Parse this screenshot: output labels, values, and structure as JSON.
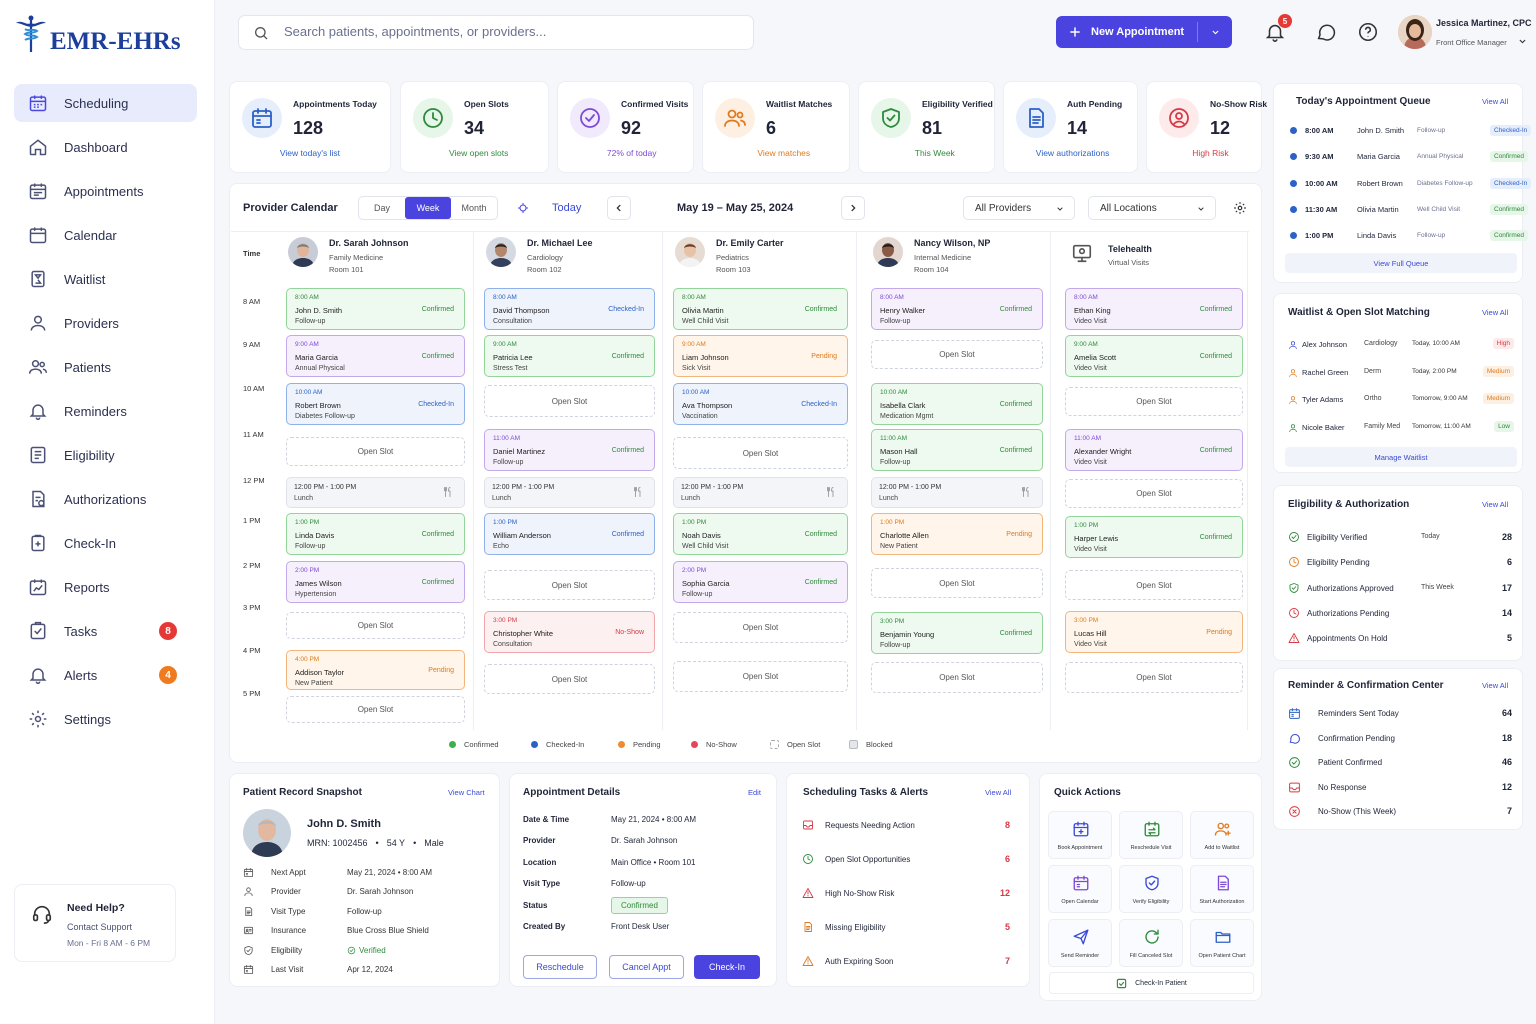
{
  "brand": {
    "name": "EMR-EHRs"
  },
  "sidebar": {
    "items": [
      {
        "label": "Scheduling"
      },
      {
        "label": "Dashboard"
      },
      {
        "label": "Appointments"
      },
      {
        "label": "Calendar"
      },
      {
        "label": "Waitlist"
      },
      {
        "label": "Providers"
      },
      {
        "label": "Patients"
      },
      {
        "label": "Reminders"
      },
      {
        "label": "Eligibility"
      },
      {
        "label": "Authorizations"
      },
      {
        "label": "Check-In"
      },
      {
        "label": "Reports"
      },
      {
        "label": "Tasks",
        "badge": "8"
      },
      {
        "label": "Alerts",
        "badge": "4"
      },
      {
        "label": "Settings"
      }
    ],
    "help": {
      "title": "Need Help?",
      "line1": "Contact Support",
      "line2": "Mon - Fri 8 AM - 6 PM"
    }
  },
  "topbar": {
    "search_placeholder": "Search patients, appointments, or providers...",
    "new_appointment": "New Appointment",
    "notif_count": "5",
    "user_name": "Jessica Martinez, CPC",
    "user_role": "Front Office Manager"
  },
  "stats": [
    {
      "label": "Appointments Today",
      "value": "128",
      "link": "View today's list",
      "color": "#2c61c7"
    },
    {
      "label": "Open Slots",
      "value": "34",
      "link": "View open slots",
      "color": "#2f8a3c"
    },
    {
      "label": "Confirmed Visits",
      "value": "92",
      "link": "72% of today",
      "color": "#7d4ad6"
    },
    {
      "label": "Waitlist Matches",
      "value": "6",
      "link": "View matches",
      "color": "#e07a1f"
    },
    {
      "label": "Eligibility Verified",
      "value": "81",
      "link": "This Week",
      "color": "#2f8a3c"
    },
    {
      "label": "Auth Pending",
      "value": "14",
      "link": "View authorizations",
      "color": "#2c61c7"
    },
    {
      "label": "No-Show Risk",
      "value": "12",
      "link": "High Risk",
      "color": "#d63a44"
    }
  ],
  "calendar": {
    "title": "Provider Calendar",
    "views": [
      "Day",
      "Week",
      "Month"
    ],
    "active_view": "Week",
    "today": "Today",
    "range": "May 19 – May 25, 2024",
    "provider_filter": "All Providers",
    "location_filter": "All Locations",
    "time_header": "Time",
    "time_labels": [
      "8 AM",
      "9 AM",
      "10 AM",
      "11 AM",
      "12 PM",
      "1 PM",
      "2 PM",
      "3 PM",
      "4 PM",
      "5 PM"
    ],
    "providers": [
      {
        "name": "Dr. Sarah Johnson",
        "specialty": "Family Medicine",
        "room": "Room 101"
      },
      {
        "name": "Dr. Michael Lee",
        "specialty": "Cardiology",
        "room": "Room 102"
      },
      {
        "name": "Dr. Emily Carter",
        "specialty": "Pediatrics",
        "room": "Room 103"
      },
      {
        "name": "Nancy Wilson, NP",
        "specialty": "Internal Medicine",
        "room": "Room 104"
      },
      {
        "name": "Telehealth",
        "specialty": "Virtual Visits",
        "room": ""
      }
    ],
    "open_slot_label": "Open Slot",
    "legend": [
      "Confirmed",
      "Checked-In",
      "Pending",
      "No-Show",
      "Open Slot",
      "Blocked"
    ],
    "columns": [
      [
        {
          "kind": "appt",
          "style": "conf",
          "time": "8:00 AM",
          "name": "John D. Smith",
          "desc": "Follow-up",
          "status": "Confirmed"
        },
        {
          "kind": "appt",
          "style": "purp",
          "time": "9:00 AM",
          "name": "Maria Garcia",
          "desc": "Annual Physical",
          "status": "Confirmed"
        },
        {
          "kind": "appt",
          "style": "chk",
          "time": "10:00 AM",
          "name": "Robert Brown",
          "desc": "Diabetes Follow-up",
          "status": "Checked-In"
        },
        {
          "kind": "open"
        },
        {
          "kind": "lunch",
          "time": "12:00 PM - 1:00 PM",
          "name": "Lunch"
        },
        {
          "kind": "appt",
          "style": "conf",
          "time": "1:00 PM",
          "name": "Linda Davis",
          "desc": "Follow-up",
          "status": "Confirmed"
        },
        {
          "kind": "appt",
          "style": "purp",
          "time": "2:00 PM",
          "name": "James Wilson",
          "desc": "Hypertension",
          "status": "Confirmed"
        },
        {
          "kind": "open"
        },
        {
          "kind": "appt",
          "style": "pend",
          "time": "4:00 PM",
          "name": "Addison Taylor",
          "desc": "New Patient",
          "status": "Pending"
        },
        {
          "kind": "open"
        }
      ],
      [
        {
          "kind": "appt",
          "style": "chk",
          "time": "8:00 AM",
          "name": "David Thompson",
          "desc": "Consultation",
          "status": "Checked-In"
        },
        {
          "kind": "appt",
          "style": "conf",
          "time": "9:00 AM",
          "name": "Patricia Lee",
          "desc": "Stress Test",
          "status": "Confirmed"
        },
        {
          "kind": "open"
        },
        {
          "kind": "appt",
          "style": "purp",
          "time": "11:00 AM",
          "name": "Daniel Martinez",
          "desc": "Follow-up",
          "status": "Confirmed"
        },
        {
          "kind": "lunch",
          "time": "12:00 PM - 1:00 PM",
          "name": "Lunch"
        },
        {
          "kind": "appt",
          "style": "chk",
          "time": "1:00 PM",
          "name": "William Anderson",
          "desc": "Echo",
          "status": "Confirmed"
        },
        {
          "kind": "open"
        },
        {
          "kind": "appt",
          "style": "nos",
          "time": "3:00 PM",
          "name": "Christopher White",
          "desc": "Consultation",
          "status": "No-Show"
        },
        {
          "kind": "open"
        }
      ],
      [
        {
          "kind": "appt",
          "style": "conf",
          "time": "8:00 AM",
          "name": "Olivia Martin",
          "desc": "Well Child Visit",
          "status": "Confirmed"
        },
        {
          "kind": "appt",
          "style": "pend",
          "time": "9:00 AM",
          "name": "Liam Johnson",
          "desc": "Sick Visit",
          "status": "Pending"
        },
        {
          "kind": "appt",
          "style": "chk",
          "time": "10:00 AM",
          "name": "Ava Thompson",
          "desc": "Vaccination",
          "status": "Checked-In"
        },
        {
          "kind": "open"
        },
        {
          "kind": "lunch",
          "time": "12:00 PM - 1:00 PM",
          "name": "Lunch"
        },
        {
          "kind": "appt",
          "style": "conf",
          "time": "1:00 PM",
          "name": "Noah Davis",
          "desc": "Well Child Visit",
          "status": "Confirmed"
        },
        {
          "kind": "appt",
          "style": "purp",
          "time": "2:00 PM",
          "name": "Sophia Garcia",
          "desc": "Follow-up",
          "status": "Confirmed"
        },
        {
          "kind": "open"
        },
        {
          "kind": "open"
        }
      ],
      [
        {
          "kind": "appt",
          "style": "purp",
          "time": "8:00 AM",
          "name": "Henry Walker",
          "desc": "Follow-up",
          "status": "Confirmed"
        },
        {
          "kind": "open"
        },
        {
          "kind": "appt",
          "style": "conf",
          "time": "10:00 AM",
          "name": "Isabella Clark",
          "desc": "Medication Mgmt",
          "status": "Confirmed"
        },
        {
          "kind": "appt",
          "style": "conf",
          "time": "11:00 AM",
          "name": "Mason Hall",
          "desc": "Follow-up",
          "status": "Confirmed"
        },
        {
          "kind": "lunch",
          "time": "12:00 PM - 1:00 PM",
          "name": "Lunch"
        },
        {
          "kind": "appt",
          "style": "pend",
          "time": "1:00 PM",
          "name": "Charlotte Allen",
          "desc": "New Patient",
          "status": "Pending"
        },
        {
          "kind": "open"
        },
        {
          "kind": "appt",
          "style": "conf",
          "time": "3:00 PM",
          "name": "Benjamin Young",
          "desc": "Follow-up",
          "status": "Confirmed"
        },
        {
          "kind": "open"
        }
      ],
      [
        {
          "kind": "appt",
          "style": "purp",
          "time": "8:00 AM",
          "name": "Ethan King",
          "desc": "Video Visit",
          "status": "Confirmed"
        },
        {
          "kind": "appt",
          "style": "conf",
          "time": "9:00 AM",
          "name": "Amelia Scott",
          "desc": "Video Visit",
          "status": "Confirmed"
        },
        {
          "kind": "open"
        },
        {
          "kind": "appt",
          "style": "purp",
          "time": "11:00 AM",
          "name": "Alexander Wright",
          "desc": "Video Visit",
          "status": "Confirmed"
        },
        {
          "kind": "open"
        },
        {
          "kind": "appt",
          "style": "conf",
          "time": "1:00 PM",
          "name": "Harper Lewis",
          "desc": "Video Visit",
          "status": "Confirmed"
        },
        {
          "kind": "open"
        },
        {
          "kind": "appt",
          "style": "pend",
          "time": "3:00 PM",
          "name": "Lucas Hill",
          "desc": "Video Visit",
          "status": "Pending"
        },
        {
          "kind": "open"
        }
      ]
    ]
  },
  "queue": {
    "title": "Today's Appointment Queue",
    "view_all": "View All",
    "rows": [
      {
        "time": "8:00 AM",
        "name": "John D. Smith",
        "visit": "Follow-up",
        "status": "Checked-In"
      },
      {
        "time": "9:30 AM",
        "name": "Maria Garcia",
        "visit": "Annual Physical",
        "status": "Confirmed"
      },
      {
        "time": "10:00 AM",
        "name": "Robert Brown",
        "visit": "Diabetes Follow-up",
        "status": "Checked-In"
      },
      {
        "time": "11:30 AM",
        "name": "Olivia Martin",
        "visit": "Well Child Visit",
        "status": "Confirmed"
      },
      {
        "time": "1:00 PM",
        "name": "Linda Davis",
        "visit": "Follow-up",
        "status": "Confirmed"
      }
    ],
    "footer": "View Full Queue"
  },
  "waitlist": {
    "title": "Waitlist & Open Slot Matching",
    "view_all": "View All",
    "rows": [
      {
        "name": "Alex Johnson",
        "spec": "Cardiology",
        "slot": "Today, 10:00 AM",
        "priority": "High"
      },
      {
        "name": "Rachel Green",
        "spec": "Derm",
        "slot": "Today, 2:00 PM",
        "priority": "Medium"
      },
      {
        "name": "Tyler Adams",
        "spec": "Ortho",
        "slot": "Tomorrow, 9:00 AM",
        "priority": "Medium"
      },
      {
        "name": "Nicole Baker",
        "spec": "Family Med",
        "slot": "Tomorrow, 11:00 AM",
        "priority": "Low"
      }
    ],
    "footer": "Manage Waitlist"
  },
  "eligibility": {
    "title": "Eligibility & Authorization",
    "view_all": "View All",
    "rows": [
      {
        "label": "Eligibility Verified",
        "period": "Today",
        "value": "28"
      },
      {
        "label": "Eligibility Pending",
        "period": "",
        "value": "6"
      },
      {
        "label": "Authorizations Approved",
        "period": "This Week",
        "value": "17"
      },
      {
        "label": "Authorizations Pending",
        "period": "",
        "value": "14"
      },
      {
        "label": "Appointments On Hold",
        "period": "",
        "value": "5"
      }
    ]
  },
  "reminders": {
    "title": "Reminder & Confirmation Center",
    "view_all": "View All",
    "rows": [
      {
        "label": "Reminders Sent Today",
        "value": "64"
      },
      {
        "label": "Confirmation Pending",
        "value": "18"
      },
      {
        "label": "Patient Confirmed",
        "value": "46"
      },
      {
        "label": "No Response",
        "value": "12"
      },
      {
        "label": "No-Show (This Week)",
        "value": "7"
      }
    ]
  },
  "snapshot": {
    "title": "Patient Record Snapshot",
    "view_chart": "View Chart",
    "name": "John D. Smith",
    "mrn": "MRN: 1002456",
    "age": "54 Y",
    "sex": "Male",
    "rows": [
      {
        "label": "Next Appt",
        "value": "May 21, 2024  •  8:00 AM"
      },
      {
        "label": "Provider",
        "value": "Dr. Sarah Johnson"
      },
      {
        "label": "Visit Type",
        "value": "Follow-up"
      },
      {
        "label": "Insurance",
        "value": "Blue Cross Blue Shield"
      },
      {
        "label": "Eligibility",
        "value": "Verified"
      },
      {
        "label": "Last Visit",
        "value": "Apr 12, 2024"
      }
    ]
  },
  "appt_details": {
    "title": "Appointment Details",
    "edit": "Edit",
    "rows": [
      {
        "label": "Date & Time",
        "value": "May 21, 2024  •  8:00 AM"
      },
      {
        "label": "Provider",
        "value": "Dr. Sarah Johnson"
      },
      {
        "label": "Location",
        "value": "Main Office  •  Room 101"
      },
      {
        "label": "Visit Type",
        "value": "Follow-up"
      },
      {
        "label": "Status",
        "value": "Confirmed"
      },
      {
        "label": "Created By",
        "value": "Front Desk User"
      }
    ],
    "buttons": {
      "reschedule": "Reschedule",
      "cancel": "Cancel Appt",
      "checkin": "Check-In"
    }
  },
  "tasks": {
    "title": "Scheduling Tasks & Alerts",
    "view_all": "View All",
    "rows": [
      {
        "label": "Requests Needing Action",
        "value": "8"
      },
      {
        "label": "Open Slot Opportunities",
        "value": "6"
      },
      {
        "label": "High No-Show Risk",
        "value": "12"
      },
      {
        "label": "Missing Eligibility",
        "value": "5"
      },
      {
        "label": "Auth Expiring Soon",
        "value": "7"
      }
    ]
  },
  "quick_actions": {
    "title": "Quick Actions",
    "items": [
      {
        "label": "Book Appointment",
        "icon": "calendar-plus-icon"
      },
      {
        "label": "Reschedule Visit",
        "icon": "calendar-swap-icon"
      },
      {
        "label": "Add to Waitlist",
        "icon": "users-plus-icon"
      },
      {
        "label": "Open Calendar",
        "icon": "calendar-icon"
      },
      {
        "label": "Verify Eligibility",
        "icon": "shield-check-icon"
      },
      {
        "label": "Start Authorization",
        "icon": "document-icon"
      },
      {
        "label": "Send Reminder",
        "icon": "paper-plane-icon"
      },
      {
        "label": "Fill Canceled Slot",
        "icon": "refresh-icon"
      },
      {
        "label": "Open Patient Chart",
        "icon": "folder-icon"
      }
    ],
    "checkin": "Check-In Patient"
  }
}
